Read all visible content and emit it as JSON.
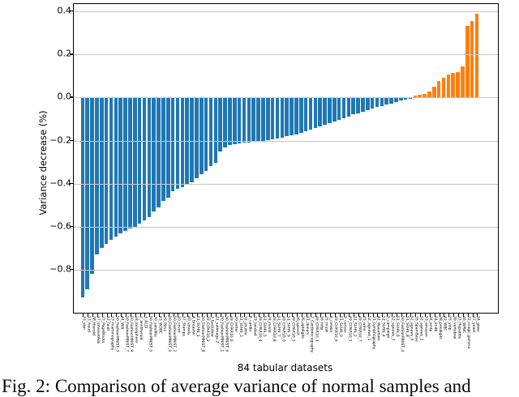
{
  "figure": {
    "xlabel": "84 tabular datasets",
    "ylabel": "Variance decrease (%)",
    "caption": "Fig. 2: Comparison of average variance of normal samples and"
  },
  "chart_data": {
    "type": "bar",
    "title": "",
    "xlabel": "84 tabular datasets",
    "ylabel": "Variance decrease (%)",
    "ylim": [
      -1.0,
      0.435
    ],
    "grid": true,
    "legend_position": "none",
    "yticks": [
      0.4,
      0.2,
      0.0,
      -0.2,
      -0.4,
      -0.6,
      -0.8
    ],
    "ytick_labels": [
      "0.4",
      "0.2",
      "0.0",
      "−0.2",
      "−0.4",
      "−0.6",
      "−0.8"
    ],
    "colors": {
      "negative_bar": "#1f77b4",
      "positive_bar": "#ff7f0e",
      "gridline": "#c6c6c6",
      "spine": "#000000"
    },
    "categories": [
      "33_skin",
      "13_fraud",
      "38_thyroid",
      "17_InternetAds",
      "27_PageBlocks",
      "12_fault",
      "23_mammography",
      "50_FashionMNIST_3",
      "44_Wilt",
      "50_FashionMNIST_7",
      "50_FashionMNIST_9",
      "18_Ionosphere",
      "2_annthyroid",
      "1_ALOI",
      "50_FashionMNIST_5",
      "30_satellite",
      "43_WDBC",
      "29_Pima",
      "50_FashionMNIST_0",
      "50_FashionMNIST_2",
      "10_cover",
      "37_Stamps",
      "40_vowels",
      "4_breastw",
      "51_SVHN_1",
      "50_FashionMNIST_8",
      "49_CIFAR10_2",
      "3_backdoor",
      "31_satimage-2",
      "50_FashionMNIST_1",
      "50_FashionMNIST_6",
      "49_CIFAR10_6",
      "20_letter",
      "51_SVHN_3",
      "32_shuttle",
      "6_cardio",
      "19_landsat",
      "49_CIFAR10_4",
      "51_SVHN_5",
      "24_mnist",
      "49_CIFAR10_8",
      "51_SVHN_7",
      "49_CIFAR10_0",
      "51_SVHN_9",
      "49_CIFAR10_3",
      "36_speech",
      "26_optdigits",
      "11_donors",
      "7_Cardiotocography",
      "49_CIFAR10_1",
      "16_http",
      "25_musk",
      "8_celeba",
      "49_CIFAR10_9",
      "51_SVHN_0",
      "9_census",
      "49_CIFAR10_5",
      "51_SVHN_2",
      "49_CIFAR10_7",
      "45_wine",
      "52_agnews_1",
      "21_Lymphography",
      "41_Waveform",
      "51_SVHN_4",
      "5_campaign",
      "52_agnews_3",
      "51_SVHN_6",
      "50_FashionMNIST_4",
      "51_SVHN_8",
      "52_agnews_0",
      "35_SpamBase",
      "52_agnews_2",
      "53_amazon",
      "34_smtp",
      "54_imdb",
      "28_pendigits",
      "42_WBC",
      "55_yelp",
      "39_vertebral",
      "15_Hepatitis",
      "46_WPBC",
      "22_magic.gamma",
      "47_yeast",
      "14_glass"
    ],
    "values": [
      -0.93,
      -0.89,
      -0.82,
      -0.73,
      -0.7,
      -0.68,
      -0.66,
      -0.645,
      -0.63,
      -0.62,
      -0.61,
      -0.6,
      -0.585,
      -0.57,
      -0.555,
      -0.53,
      -0.51,
      -0.48,
      -0.465,
      -0.435,
      -0.425,
      -0.415,
      -0.405,
      -0.395,
      -0.375,
      -0.355,
      -0.34,
      -0.32,
      -0.305,
      -0.25,
      -0.23,
      -0.222,
      -0.216,
      -0.213,
      -0.21,
      -0.208,
      -0.205,
      -0.203,
      -0.2,
      -0.198,
      -0.195,
      -0.19,
      -0.185,
      -0.18,
      -0.175,
      -0.17,
      -0.163,
      -0.156,
      -0.149,
      -0.142,
      -0.134,
      -0.127,
      -0.119,
      -0.111,
      -0.103,
      -0.095,
      -0.087,
      -0.079,
      -0.072,
      -0.065,
      -0.058,
      -0.051,
      -0.045,
      -0.039,
      -0.033,
      -0.027,
      -0.021,
      -0.015,
      -0.009,
      -0.004,
      0.008,
      0.012,
      0.016,
      0.03,
      0.05,
      0.076,
      0.092,
      0.108,
      0.116,
      0.12,
      0.145,
      0.335,
      0.355,
      0.39
    ]
  }
}
